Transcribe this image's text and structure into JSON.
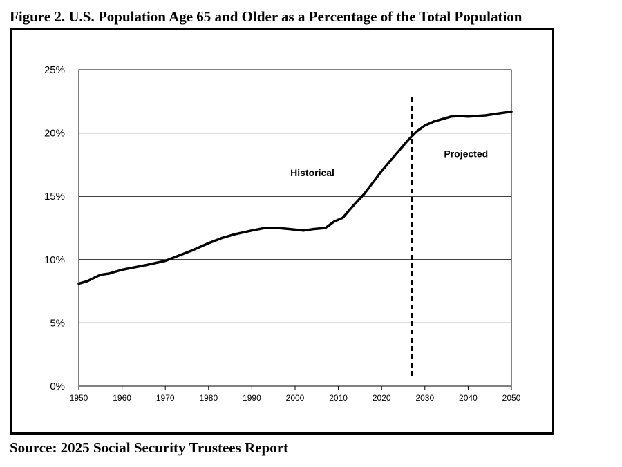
{
  "figure": {
    "title": "Figure 2. U.S. Population Age 65 and Older as a Percentage of the Total Population",
    "source": "Source: 2025 Social Security Trustees Report"
  },
  "chart_data": {
    "type": "line",
    "title": "Figure 2. U.S. Population Age 65 and Older as a Percentage of the Total Population",
    "xlabel": "",
    "ylabel": "",
    "xlim": [
      1950,
      2050
    ],
    "ylim": [
      0,
      25
    ],
    "grid": true,
    "x_ticks": [
      "1950",
      "1960",
      "1970",
      "1980",
      "1990",
      "2000",
      "2010",
      "2020",
      "2030",
      "2040",
      "2050"
    ],
    "y_ticks": [
      "0%",
      "5%",
      "10%",
      "15%",
      "20%",
      "25%"
    ],
    "y_tick_values": [
      0,
      5,
      10,
      15,
      20,
      25
    ],
    "projection_start": 2027,
    "annotations": [
      {
        "text": "Historical",
        "x": 2004,
        "y": 16.6
      },
      {
        "text": "Projected",
        "x": 2039.5,
        "y": 18.1
      }
    ],
    "series": [
      {
        "color": "#000000",
        "x": [
          1950,
          1952,
          1955,
          1957,
          1960,
          1963,
          1966,
          1970,
          1973,
          1976,
          1980,
          1983,
          1986,
          1990,
          1993,
          1996,
          1999,
          2002,
          2004,
          2007,
          2009,
          2011,
          2013,
          2016,
          2018,
          2020,
          2022,
          2024,
          2026,
          2028,
          2030,
          2032,
          2034,
          2036,
          2038,
          2040,
          2042,
          2044,
          2046,
          2048,
          2050
        ],
        "y": [
          8.1,
          8.3,
          8.8,
          8.9,
          9.2,
          9.4,
          9.6,
          9.9,
          10.3,
          10.7,
          11.3,
          11.7,
          12.0,
          12.3,
          12.5,
          12.5,
          12.4,
          12.3,
          12.4,
          12.5,
          13.0,
          13.3,
          14.1,
          15.2,
          16.1,
          17.0,
          17.8,
          18.6,
          19.4,
          20.1,
          20.6,
          20.9,
          21.1,
          21.3,
          21.35,
          21.3,
          21.35,
          21.4,
          21.5,
          21.6,
          21.7
        ]
      }
    ]
  }
}
